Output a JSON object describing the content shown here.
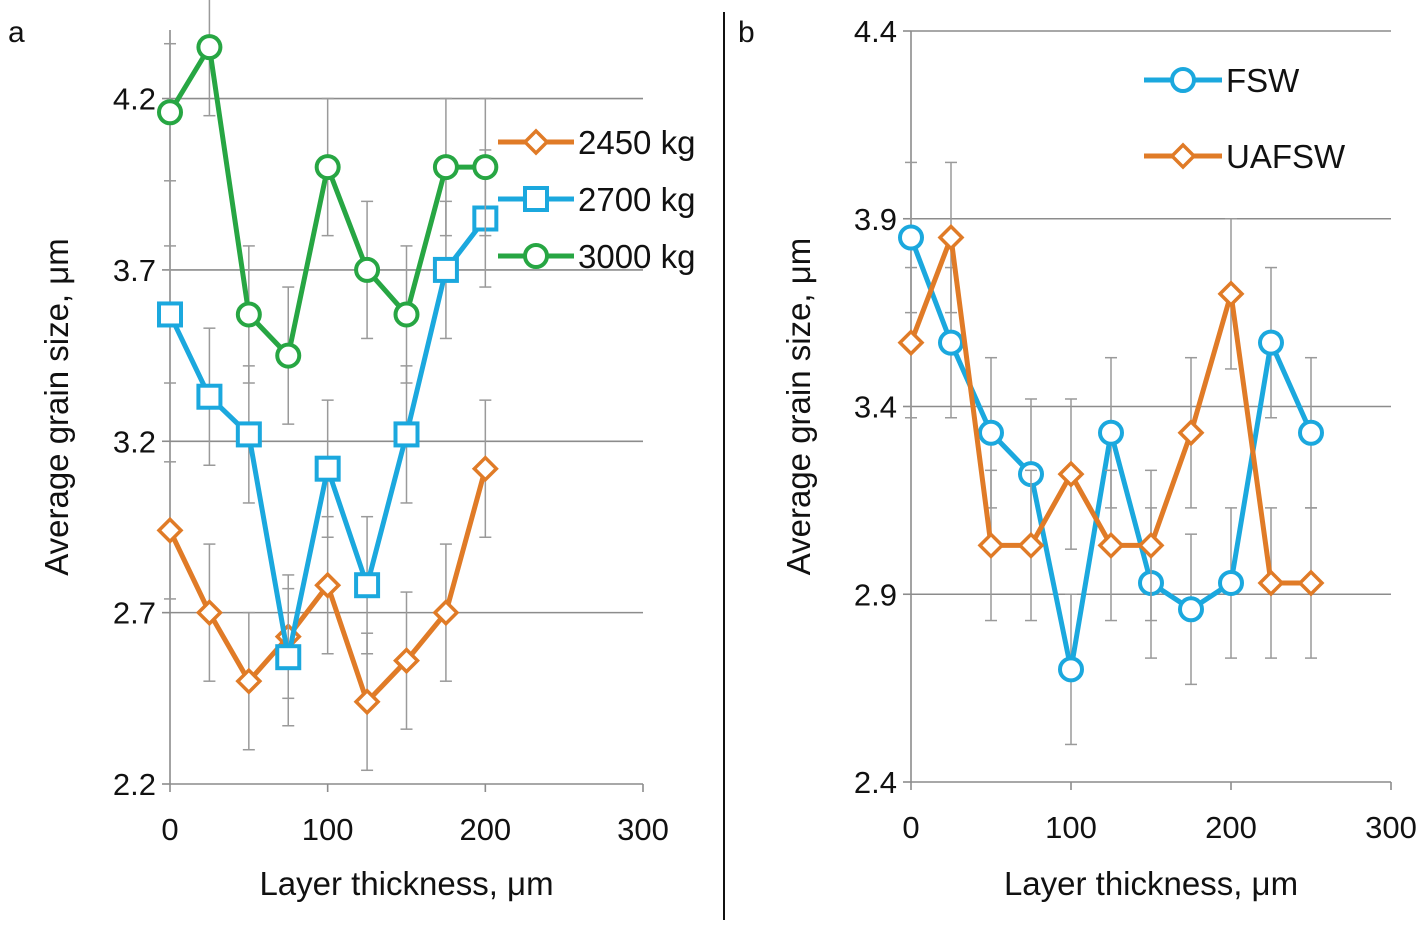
{
  "chart_data": [
    {
      "panel_label": "a",
      "type": "line",
      "xlabel": "Layer thickness, μm",
      "ylabel": "Average grain size, μm",
      "xlim": [
        0,
        300
      ],
      "ylim": [
        2.2,
        4.4
      ],
      "xticks": [
        0,
        100,
        200,
        300
      ],
      "xtick_labels": [
        "0",
        "100",
        "200",
        "300"
      ],
      "yticks": [
        2.2,
        2.7,
        3.2,
        3.7,
        4.2
      ],
      "ytick_labels": [
        "2.2",
        "2.7",
        "3.2",
        "3.7",
        "4.2"
      ],
      "grid": "horizontal",
      "legend_position": "top-right",
      "series": [
        {
          "name": "2450 kg",
          "marker": "diamond",
          "color": "#E07B27",
          "x": [
            0,
            25,
            50,
            75,
            100,
            125,
            150,
            175,
            200
          ],
          "values": [
            2.94,
            2.7,
            2.5,
            2.63,
            2.78,
            2.44,
            2.56,
            2.7,
            3.12
          ],
          "error": [
            0.2,
            0.2,
            0.2,
            0.18,
            0.2,
            0.2,
            0.2,
            0.2,
            0.2
          ]
        },
        {
          "name": "2700 kg",
          "marker": "square",
          "color": "#1BA8DE",
          "x": [
            0,
            25,
            50,
            75,
            100,
            125,
            150,
            175,
            200
          ],
          "values": [
            3.57,
            3.33,
            3.22,
            2.57,
            3.12,
            2.78,
            3.22,
            3.7,
            3.85
          ],
          "error": [
            0.2,
            0.2,
            0.2,
            0.2,
            0.2,
            0.2,
            0.2,
            0.2,
            0.2
          ]
        },
        {
          "name": "3000 kg",
          "marker": "circle",
          "color": "#27A643",
          "x": [
            0,
            25,
            50,
            75,
            100,
            125,
            150,
            175,
            200
          ],
          "values": [
            4.16,
            4.35,
            3.57,
            3.45,
            4.0,
            3.7,
            3.57,
            4.0,
            4.0
          ],
          "error": [
            0.2,
            0.2,
            0.2,
            0.2,
            0.2,
            0.2,
            0.2,
            0.2,
            0.2
          ]
        }
      ]
    },
    {
      "panel_label": "b",
      "type": "line",
      "xlabel": "Layer thickness, μm",
      "ylabel": "Average grain size, μm",
      "xlim": [
        0,
        300
      ],
      "ylim": [
        2.4,
        4.4
      ],
      "xticks": [
        0,
        100,
        200,
        300
      ],
      "xtick_labels": [
        "0",
        "100",
        "200",
        "300"
      ],
      "yticks": [
        2.4,
        2.9,
        3.4,
        3.9,
        4.4
      ],
      "ytick_labels": [
        "2.4",
        "2.9",
        "3.4",
        "3.9",
        "4.4"
      ],
      "grid": "horizontal",
      "legend_position": "top-right",
      "series": [
        {
          "name": "FSW",
          "marker": "circle",
          "color": "#1BA8DE",
          "x": [
            0,
            25,
            50,
            75,
            100,
            125,
            150,
            175,
            200,
            225,
            250
          ],
          "values": [
            3.85,
            3.57,
            3.33,
            3.22,
            2.7,
            3.33,
            2.93,
            2.86,
            2.93,
            3.57,
            3.33
          ],
          "error": [
            0.2,
            0.2,
            0.2,
            0.2,
            0.2,
            0.2,
            0.2,
            0.2,
            0.2,
            0.2,
            0.2
          ]
        },
        {
          "name": "UAFSW",
          "marker": "diamond",
          "color": "#E07B27",
          "x": [
            0,
            25,
            50,
            75,
            100,
            125,
            150,
            175,
            200,
            225,
            250
          ],
          "values": [
            3.57,
            3.85,
            3.03,
            3.03,
            3.22,
            3.03,
            3.03,
            3.33,
            3.7,
            2.93,
            2.93
          ],
          "error": [
            0.2,
            0.2,
            0.2,
            0.2,
            0.2,
            0.2,
            0.2,
            0.2,
            0.2,
            0.2,
            0.2
          ]
        }
      ]
    }
  ]
}
